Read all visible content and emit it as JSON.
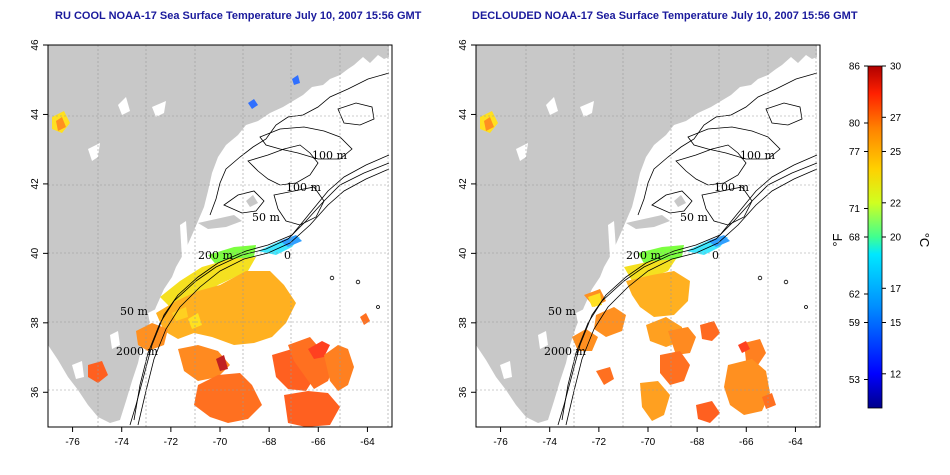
{
  "titles": {
    "left": "RU COOL NOAA-17 Sea Surface Temperature July 10, 2007 15:56 GMT",
    "right": "DECLOUDED NOAA-17 Sea Surface Temperature July 10, 2007 15:56 GMT"
  },
  "axes": {
    "x_ticks": [
      "-76",
      "-74",
      "-72",
      "-70",
      "-68",
      "-66",
      "-64"
    ],
    "y_ticks": [
      "46",
      "44",
      "42",
      "40",
      "38",
      "36"
    ],
    "x_range": [
      -77,
      -63
    ],
    "y_range": [
      35,
      46
    ]
  },
  "contour_labels": {
    "left": [
      "100 m",
      "100 m",
      "50 m",
      "200 m",
      "0",
      "50 m",
      "2000 m"
    ],
    "right": [
      "100 m",
      "100 m",
      "50 m",
      "200 m",
      "0",
      "50 m",
      "2000 m"
    ]
  },
  "colorbar": {
    "fahrenheit_ticks": [
      "86",
      "80",
      "77",
      "71",
      "68",
      "62",
      "59",
      "53"
    ],
    "celsius_ticks": [
      "30",
      "27",
      "25",
      "22",
      "20",
      "17",
      "15",
      "12"
    ],
    "f_values": [
      86,
      80,
      77,
      71,
      68,
      62,
      59,
      53
    ],
    "c_values": [
      30,
      27,
      25,
      22,
      20,
      17,
      15,
      12
    ],
    "f_unit": "°F",
    "c_unit": "°C",
    "range_c": [
      10,
      30
    ],
    "colors": [
      "#00008b",
      "#0000ff",
      "#0080ff",
      "#00e0ff",
      "#40ff80",
      "#c0ff20",
      "#ffe000",
      "#ff8000",
      "#ff2000",
      "#b00000"
    ]
  },
  "colors": {
    "land": "#c8c8c8",
    "ocean": "#ffffff",
    "title": "#1a1a9c",
    "contour": "#000000"
  }
}
